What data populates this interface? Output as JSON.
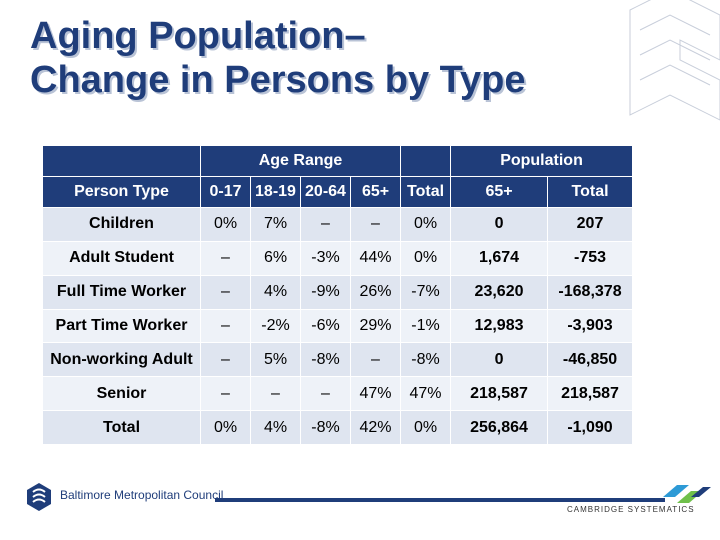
{
  "title": {
    "line1": "Aging Population–",
    "line2": "Change in Persons by Type"
  },
  "table": {
    "group_headers": {
      "age_range": "Age Range",
      "population": "Population"
    },
    "col_headers": [
      "Person Type",
      "0-17",
      "18-19",
      "20-64",
      "65+",
      "Total",
      "65+",
      "Total"
    ],
    "rows": [
      [
        "Children",
        "0%",
        "7%",
        "–",
        "–",
        "0%",
        "0",
        "207"
      ],
      [
        "Adult Student",
        "–",
        "6%",
        "-3%",
        "44%",
        "0%",
        "1,674",
        "-753"
      ],
      [
        "Full Time Worker",
        "–",
        "4%",
        "-9%",
        "26%",
        "-7%",
        "23,620",
        "-168,378"
      ],
      [
        "Part Time Worker",
        "–",
        "-2%",
        "-6%",
        "29%",
        "-1%",
        "12,983",
        "-3,903"
      ],
      [
        "Non-working Adult",
        "–",
        "5%",
        "-8%",
        "–",
        "-8%",
        "0",
        "-46,850"
      ],
      [
        "Senior",
        "–",
        "–",
        "–",
        "47%",
        "47%",
        "218,587",
        "218,587"
      ],
      [
        "Total",
        "0%",
        "4%",
        "-8%",
        "42%",
        "0%",
        "256,864",
        "-1,090"
      ]
    ]
  },
  "footer": {
    "left_org": "Baltimore Metropolitan Council",
    "right_org": "CAMBRIDGE SYSTEMATICS"
  },
  "colors": {
    "brand_blue": "#1f3d7a",
    "row_tint": "#dfe5f0",
    "row_tint_light": "#eef2f8"
  },
  "icons": [
    "bmc-logo-icon",
    "cambridge-systematics-logo-icon",
    "corner-decoration-icon"
  ]
}
